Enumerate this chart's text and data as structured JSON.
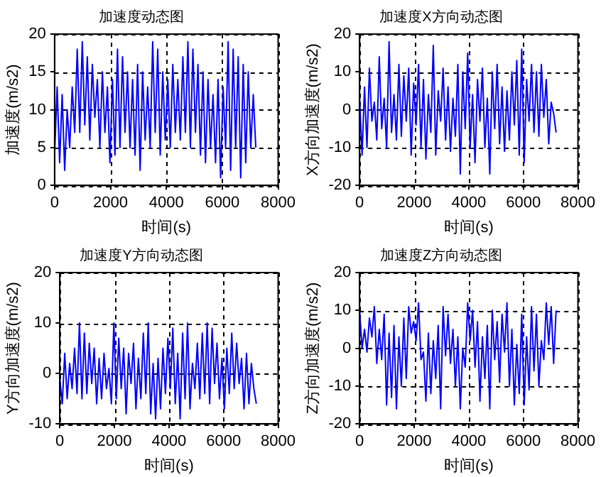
{
  "chart_data": [
    {
      "type": "line",
      "title": "加速度动态图",
      "xlabel": "时间(s)",
      "ylabel": "加速度(m/s2)",
      "xlim": [
        0,
        8000
      ],
      "xticks": [
        0,
        2000,
        4000,
        6000,
        8000
      ],
      "ylim": [
        0,
        20
      ],
      "yticks": [
        0,
        5,
        10,
        15,
        20
      ],
      "grid": true,
      "legend": false,
      "marker": "none",
      "line_style": "solid",
      "x": [
        0,
        90,
        180,
        270,
        360,
        450,
        540,
        630,
        720,
        810,
        900,
        990,
        1080,
        1170,
        1260,
        1350,
        1440,
        1530,
        1620,
        1710,
        1800,
        1890,
        1980,
        2070,
        2160,
        2250,
        2340,
        2430,
        2520,
        2610,
        2700,
        2790,
        2880,
        2970,
        3060,
        3150,
        3240,
        3330,
        3420,
        3510,
        3600,
        3690,
        3780,
        3870,
        3960,
        4050,
        4140,
        4230,
        4320,
        4410,
        4500,
        4590,
        4680,
        4770,
        4860,
        4950,
        5040,
        5130,
        5220,
        5310,
        5400,
        5490,
        5580,
        5670,
        5760,
        5850,
        5940,
        6030,
        6120,
        6210,
        6300,
        6390,
        6480,
        6570,
        6660,
        6750,
        6840,
        6930,
        7020,
        7110,
        7200
      ],
      "series": [
        {
          "color": "#0000ff",
          "values": [
            4,
            13,
            3,
            12,
            2,
            10,
            5,
            13,
            7,
            18,
            7,
            19,
            8,
            17,
            6,
            16,
            9,
            14,
            5,
            15,
            7,
            13,
            3,
            14,
            4,
            18,
            5,
            17,
            7,
            15,
            5,
            14,
            4,
            16,
            2,
            15,
            6,
            13,
            5,
            19,
            7,
            18,
            4,
            15,
            6,
            14,
            5,
            16,
            7,
            14,
            6,
            17,
            7,
            19,
            5,
            18,
            7,
            16,
            4,
            15,
            3,
            14,
            5,
            12,
            3,
            14,
            1,
            13,
            5,
            19,
            2,
            18,
            5,
            17,
            1,
            16,
            3,
            15,
            5,
            12,
            5
          ]
        }
      ]
    },
    {
      "type": "line",
      "title": "加速度X方向动态图",
      "xlabel": "时间(s)",
      "ylabel": "X方向加速度(m/s2)",
      "xlim": [
        0,
        8000
      ],
      "xticks": [
        0,
        2000,
        4000,
        6000,
        8000
      ],
      "ylim": [
        -20,
        20
      ],
      "yticks": [
        -20,
        -10,
        0,
        10,
        20
      ],
      "grid": true,
      "legend": false,
      "marker": "none",
      "line_style": "solid",
      "x": [
        0,
        90,
        180,
        270,
        360,
        450,
        540,
        630,
        720,
        810,
        900,
        990,
        1080,
        1170,
        1260,
        1350,
        1440,
        1530,
        1620,
        1710,
        1800,
        1890,
        1980,
        2070,
        2160,
        2250,
        2340,
        2430,
        2520,
        2610,
        2700,
        2790,
        2880,
        2970,
        3060,
        3150,
        3240,
        3330,
        3420,
        3510,
        3600,
        3690,
        3780,
        3870,
        3960,
        4050,
        4140,
        4230,
        4320,
        4410,
        4500,
        4590,
        4680,
        4770,
        4860,
        4950,
        5040,
        5130,
        5220,
        5310,
        5400,
        5490,
        5580,
        5670,
        5760,
        5850,
        5940,
        6030,
        6120,
        6210,
        6300,
        6390,
        6480,
        6570,
        6660,
        6750,
        6840,
        6930,
        7020,
        7110,
        7200
      ],
      "series": [
        {
          "color": "#0000ff",
          "values": [
            3,
            -12,
            6,
            -10,
            11,
            -3,
            2,
            -8,
            14,
            -5,
            3,
            -10,
            18,
            -6,
            4,
            -8,
            12,
            -7,
            9,
            -3,
            11,
            -12,
            7,
            -4,
            12,
            -10,
            8,
            -13,
            4,
            -6,
            17,
            -12,
            5,
            -3,
            11,
            -8,
            6,
            -11,
            3,
            -7,
            12,
            -17,
            10,
            -5,
            15,
            -10,
            4,
            -14,
            8,
            -3,
            11,
            -10,
            3,
            -17,
            10,
            -5,
            12,
            -9,
            6,
            -11,
            5,
            -8,
            10,
            -4,
            13,
            -12,
            16,
            -14,
            8,
            -3,
            12,
            -6,
            10,
            -7,
            12,
            -2,
            8,
            -9,
            2,
            -1,
            -6
          ]
        }
      ]
    },
    {
      "type": "line",
      "title": "加速度Y方向动态图",
      "xlabel": "时间(s)",
      "ylabel": "Y方向加速度(m/s2)",
      "xlim": [
        0,
        8000
      ],
      "xticks": [
        0,
        2000,
        4000,
        6000,
        8000
      ],
      "ylim": [
        -10,
        20
      ],
      "yticks": [
        -10,
        0,
        10,
        20
      ],
      "grid": true,
      "legend": false,
      "marker": "none",
      "line_style": "solid",
      "x": [
        0,
        90,
        180,
        270,
        360,
        450,
        540,
        630,
        720,
        810,
        900,
        990,
        1080,
        1170,
        1260,
        1350,
        1440,
        1530,
        1620,
        1710,
        1800,
        1890,
        1980,
        2070,
        2160,
        2250,
        2340,
        2430,
        2520,
        2610,
        2700,
        2790,
        2880,
        2970,
        3060,
        3150,
        3240,
        3330,
        3420,
        3510,
        3600,
        3690,
        3780,
        3870,
        3960,
        4050,
        4140,
        4230,
        4320,
        4410,
        4500,
        4590,
        4680,
        4770,
        4860,
        4950,
        5040,
        5130,
        5220,
        5310,
        5400,
        5490,
        5580,
        5670,
        5760,
        5850,
        5940,
        6030,
        6120,
        6210,
        6300,
        6390,
        6480,
        6570,
        6660,
        6750,
        6840,
        6930,
        7020,
        7110,
        7200
      ],
      "series": [
        {
          "color": "#0000ff",
          "values": [
            -1,
            -6,
            4,
            -5,
            2,
            -3,
            5,
            -4,
            10,
            -5,
            8,
            -4,
            6,
            -2,
            5,
            -6,
            3,
            -5,
            4,
            -3,
            1,
            -6,
            10,
            -5,
            7,
            -3,
            5,
            -8,
            4,
            -2,
            6,
            -7,
            3,
            -5,
            8,
            -4,
            10,
            -8,
            2,
            -9,
            3,
            -7,
            5,
            -4,
            7,
            -3,
            9,
            -6,
            4,
            -9,
            8,
            -5,
            10,
            -7,
            2,
            -3,
            6,
            -5,
            8,
            -4,
            10,
            -6,
            9,
            -2,
            6,
            -5,
            3,
            -7,
            5,
            -4,
            8,
            -3,
            6,
            -2,
            3,
            -7,
            4,
            -6,
            2,
            -3,
            -6
          ]
        }
      ]
    },
    {
      "type": "line",
      "title": "加速度Z方向动态图",
      "xlabel": "时间(s)",
      "ylabel": "Z方向加速度(m/s2)",
      "xlim": [
        0,
        8000
      ],
      "xticks": [
        0,
        2000,
        4000,
        6000,
        8000
      ],
      "ylim": [
        -20,
        20
      ],
      "yticks": [
        -20,
        -10,
        0,
        10,
        20
      ],
      "grid": true,
      "legend": false,
      "marker": "none",
      "line_style": "solid",
      "x": [
        0,
        90,
        180,
        270,
        360,
        450,
        540,
        630,
        720,
        810,
        900,
        990,
        1080,
        1170,
        1260,
        1350,
        1440,
        1530,
        1620,
        1710,
        1800,
        1890,
        1980,
        2070,
        2160,
        2250,
        2340,
        2430,
        2520,
        2610,
        2700,
        2790,
        2880,
        2970,
        3060,
        3150,
        3240,
        3330,
        3420,
        3510,
        3600,
        3690,
        3780,
        3870,
        3960,
        4050,
        4140,
        4230,
        4320,
        4410,
        4500,
        4590,
        4680,
        4770,
        4860,
        4950,
        5040,
        5130,
        5220,
        5310,
        5400,
        5490,
        5580,
        5670,
        5760,
        5850,
        5940,
        6030,
        6120,
        6210,
        6300,
        6390,
        6480,
        6570,
        6660,
        6750,
        6840,
        6930,
        7020,
        7110,
        7200
      ],
      "series": [
        {
          "color": "#0000ff",
          "values": [
            10,
            0,
            5,
            -1,
            8,
            3,
            11,
            -4,
            5,
            -3,
            9,
            -15,
            4,
            -13,
            6,
            -16,
            3,
            -10,
            8,
            -8,
            11,
            4,
            7,
            2,
            12,
            -3,
            -1,
            -14,
            4,
            -12,
            2,
            -8,
            6,
            -16,
            11,
            -2,
            9,
            -4,
            5,
            -10,
            3,
            -16,
            0,
            -5,
            12,
            2,
            10,
            -5,
            7,
            -14,
            3,
            -8,
            6,
            -16,
            10,
            -3,
            7,
            -9,
            9,
            -1,
            12,
            -10,
            5,
            -15,
            1,
            -12,
            9,
            -15,
            3,
            -11,
            11,
            -6,
            9,
            -10,
            2,
            -3,
            12,
            1,
            11,
            -4,
            10
          ]
        }
      ]
    }
  ]
}
